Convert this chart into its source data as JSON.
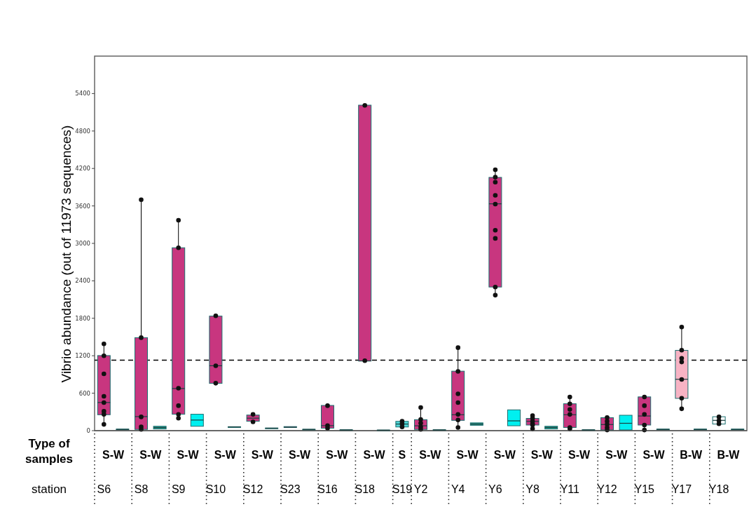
{
  "chart_data": {
    "type": "box",
    "ylabel": "Vibrio abundance (out of 11973 sequences)",
    "xlabel": "station",
    "categories": [
      "S6",
      null,
      "S8",
      null,
      "S9",
      null,
      "S10",
      null,
      "S12",
      null,
      "S23",
      null,
      "S16",
      null,
      "S18",
      null,
      "S19",
      "Y2",
      null,
      "Y4",
      null,
      "Y6",
      null,
      "Y8",
      null,
      "Y11",
      null,
      "Y12",
      null,
      "Y15",
      null,
      "Y17",
      null,
      "Y18",
      null
    ],
    "annotations": [
      "Type of samples",
      "S-W",
      "S-W",
      "S-W",
      "S-W",
      "S-W",
      "S-W",
      "S-W",
      "S-W",
      "S",
      "S-W",
      "S-W",
      "S-W",
      "S-W",
      "S-W",
      "S-W",
      "S-W",
      "B-W",
      "B-W"
    ],
    "ylim": [
      0,
      6000
    ],
    "yticks": [
      0,
      600,
      1200,
      1800,
      2400,
      3000,
      3600,
      4200,
      4800,
      5400
    ],
    "ref_lines": [
      {
        "axis": "y",
        "value": 1130,
        "line_style": "dashed",
        "color": "#000000"
      }
    ],
    "series": [
      {
        "colors": [
          "#c8367f",
          "#2a9d8f",
          "#c8367f",
          "#2a9d8f",
          "#c8367f",
          "#00f0f0",
          "#c8367f",
          "#2a9d8f",
          "#c8367f",
          "#2a9d8f",
          "#c8367f",
          "#2a9d8f",
          "#c8367f",
          "#2a9d8f",
          "#c8367f",
          "#2a9d8f",
          "#4fd6d6",
          "#c8367f",
          "#2a9d8f",
          "#c8367f",
          "#2a9d8f",
          "#c8367f",
          "#00f0f0",
          "#c8367f",
          "#2a9d8f",
          "#c8367f",
          "#2a9d8f",
          "#c8367f",
          "#00f0f0",
          "#c8367f",
          "#2a9d8f",
          "#f7b3c4",
          "#2a9d8f",
          "#ffffff",
          "#2a9d8f"
        ],
        "boxes": [
          {
            "low": 98,
            "q1": 255,
            "median": 451,
            "q3": 1203,
            "high": 1392
          },
          {
            "low": 10,
            "q1": 15,
            "median": 20,
            "q3": 25,
            "high": 30
          },
          {
            "low": 15,
            "q1": 20,
            "median": 225,
            "q3": 1490,
            "high": 3700
          },
          {
            "low": 27,
            "q1": 27,
            "median": 50,
            "q3": 70,
            "high": 70
          },
          {
            "low": 205,
            "q1": 263,
            "median": 675,
            "q3": 2930,
            "high": 3370
          },
          {
            "low": 70,
            "q1": 70,
            "median": 170,
            "q3": 263,
            "high": 263
          },
          {
            "low": 757,
            "q1": 757,
            "median": 1040,
            "q3": 1835,
            "high": 1835
          },
          {
            "low": 50,
            "q1": 55,
            "median": 59,
            "q3": 63,
            "high": 68
          },
          {
            "low": 137,
            "q1": 150,
            "median": 200,
            "q3": 250,
            "high": 263
          },
          {
            "low": 30,
            "q1": 35,
            "median": 39,
            "q3": 43,
            "high": 48
          },
          {
            "low": 45,
            "q1": 50,
            "median": 55,
            "q3": 65,
            "high": 70
          },
          {
            "low": 15,
            "q1": 18,
            "median": 20,
            "q3": 22,
            "high": 25
          },
          {
            "low": 20,
            "q1": 40,
            "median": 80,
            "q3": 404,
            "high": 404
          },
          {
            "low": 5,
            "q1": 8,
            "median": 12,
            "q3": 15,
            "high": 18
          },
          {
            "low": 1117,
            "q1": 1117,
            "median": 1117,
            "q3": 5214,
            "high": 5214
          },
          {
            "low": 4,
            "q1": 6,
            "median": 8,
            "q3": 10,
            "high": 12
          },
          {
            "low": 59,
            "q1": 59,
            "median": 106,
            "q3": 149,
            "high": 149
          },
          {
            "low": 10,
            "q1": 20,
            "median": 78,
            "q3": 176,
            "high": 372
          },
          {
            "low": 5,
            "q1": 8,
            "median": 12,
            "q3": 15,
            "high": 18
          },
          {
            "low": 51,
            "q1": 165,
            "median": 255,
            "q3": 953,
            "high": 1333
          },
          {
            "low": 86,
            "q1": 86,
            "median": 105,
            "q3": 125,
            "high": 125
          },
          {
            "low": 2168,
            "q1": 2301,
            "median": 3634,
            "q3": 4057,
            "high": 4183
          },
          {
            "low": 78,
            "q1": 78,
            "median": 157,
            "q3": 333,
            "high": 333
          },
          {
            "low": 27,
            "q1": 90,
            "median": 149,
            "q3": 196,
            "high": 243
          },
          {
            "low": 27,
            "q1": 27,
            "median": 51,
            "q3": 70,
            "high": 70
          },
          {
            "low": 27,
            "q1": 51,
            "median": 255,
            "q3": 431,
            "high": 537
          },
          {
            "low": 5,
            "q1": 8,
            "median": 12,
            "q3": 15,
            "high": 18
          },
          {
            "low": 12,
            "q1": 12,
            "median": 98,
            "q3": 208,
            "high": 208
          },
          {
            "low": 12,
            "q1": 12,
            "median": 118,
            "q3": 247,
            "high": 247
          },
          {
            "low": 12,
            "q1": 90,
            "median": 235,
            "q3": 541,
            "high": 541
          },
          {
            "low": 12,
            "q1": 15,
            "median": 20,
            "q3": 25,
            "high": 28
          },
          {
            "low": 353,
            "q1": 517,
            "median": 823,
            "q3": 1286,
            "high": 1658
          },
          {
            "low": 12,
            "q1": 15,
            "median": 20,
            "q3": 25,
            "high": 28
          },
          {
            "low": 106,
            "q1": 106,
            "median": 165,
            "q3": 223,
            "high": 223
          },
          {
            "low": 12,
            "q1": 15,
            "median": 20,
            "q3": 25,
            "high": 28
          }
        ]
      },
      {
        "type": "scatter",
        "color": "#111111",
        "marker": "circle",
        "x": [
          "S6",
          "S6",
          "S6",
          "S6",
          "S6",
          "S6",
          "S6",
          "S6",
          "S8",
          "S8",
          "S8",
          "S8",
          "S8",
          "S9",
          "S9",
          "S9",
          "S9",
          "S9",
          "S9",
          "S10",
          "S10",
          "S10",
          "S12",
          "S12",
          "S16",
          "S16",
          "S16",
          "S18",
          "S18",
          "S19",
          "S19",
          "S19",
          "Y2",
          "Y2",
          "Y2",
          "Y2",
          "Y2",
          "Y4",
          "Y4",
          "Y4",
          "Y4",
          "Y4",
          "Y4",
          "Y4",
          "Y6",
          "Y6",
          "Y6",
          "Y6",
          "Y6",
          "Y6",
          "Y6",
          "Y6",
          "Y6",
          "Y8",
          "Y8",
          "Y8",
          "Y8",
          "Y8",
          "Y8",
          "Y11",
          "Y11",
          "Y11",
          "Y11",
          "Y11",
          "Y11",
          "Y12",
          "Y12",
          "Y12",
          "Y12",
          "Y12",
          "Y15",
          "Y15",
          "Y15",
          "Y15",
          "Y15",
          "Y17",
          "Y17",
          "Y17",
          "Y17",
          "Y17",
          "Y17",
          "Y17",
          "Y18",
          "Y18",
          "Y18"
        ],
        "values": [
          1390,
          1200,
          910,
          550,
          450,
          310,
          260,
          100,
          3700,
          1490,
          220,
          60,
          20,
          3370,
          2930,
          680,
          400,
          260,
          200,
          1840,
          1040,
          760,
          260,
          140,
          400,
          80,
          40,
          5210,
          1120,
          150,
          110,
          60,
          370,
          180,
          120,
          60,
          20,
          1330,
          950,
          590,
          450,
          260,
          170,
          50,
          4180,
          4060,
          3980,
          3770,
          3630,
          3210,
          3080,
          2300,
          2170,
          240,
          200,
          150,
          110,
          90,
          30,
          540,
          430,
          340,
          260,
          50,
          30,
          210,
          150,
          100,
          50,
          10,
          540,
          400,
          260,
          90,
          10,
          1660,
          1290,
          1160,
          1100,
          820,
          520,
          350,
          220,
          160,
          110
        ]
      }
    ]
  }
}
